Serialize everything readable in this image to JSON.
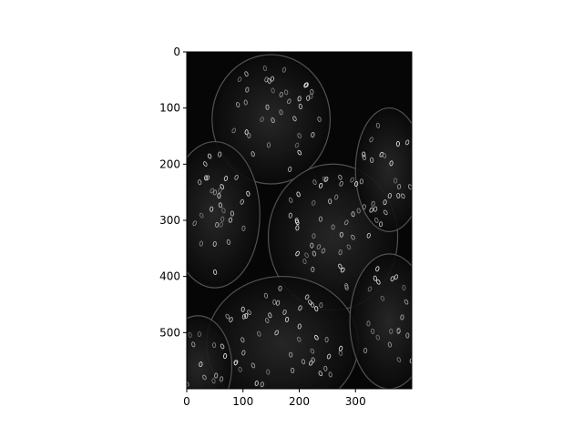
{
  "chart_data": {
    "type": "heatmap",
    "title": "",
    "xlabel": "",
    "ylabel": "",
    "image_shape": [
      600,
      400
    ],
    "colormap": "gray",
    "xlim": [
      0,
      400
    ],
    "ylim": [
      600,
      0
    ],
    "x_ticks": [
      0,
      100,
      200,
      300
    ],
    "x_tick_labels": [
      "0",
      "100",
      "200",
      "300"
    ],
    "y_ticks": [
      0,
      100,
      200,
      300,
      400,
      500
    ],
    "y_tick_labels": [
      "0",
      "100",
      "200",
      "300",
      "400",
      "500"
    ],
    "grid": false,
    "image_description": "edge-detection (gradient magnitude) of strawberries, bright outlines and seed ovals on black"
  }
}
